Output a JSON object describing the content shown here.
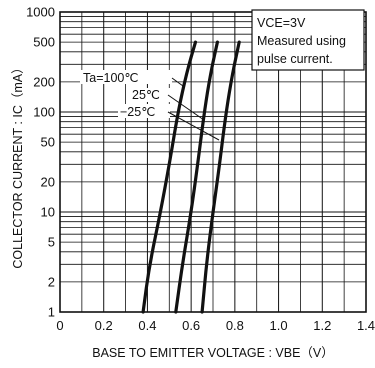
{
  "chart_data": {
    "type": "line",
    "title": "",
    "xlabel": "BASE TO EMITTER VOLTAGE : VBE（V）",
    "ylabel": "COLLECTOR CURRENT : IC（mA）",
    "xlim": [
      0,
      1.4
    ],
    "ylim": [
      1,
      1000
    ],
    "yscale": "log",
    "grid": true,
    "legend": "curve labels top-center",
    "x_ticks": [
      "0",
      "0.2",
      "0.4",
      "0.6",
      "0.8",
      "1.0",
      "1.2",
      "1.4"
    ],
    "y_ticks": [
      "1",
      "2",
      "5",
      "10",
      "20",
      "50",
      "100",
      "200",
      "500",
      "1000"
    ],
    "series": [
      {
        "name": "Ta=100℃",
        "x": [
          0.38,
          0.41,
          0.46,
          0.5,
          0.54,
          0.58,
          0.62
        ],
        "y": [
          1,
          3,
          10,
          30,
          100,
          250,
          500
        ]
      },
      {
        "name": "25℃",
        "x": [
          0.53,
          0.56,
          0.6,
          0.63,
          0.66,
          0.69,
          0.72
        ],
        "y": [
          1,
          3,
          10,
          30,
          100,
          250,
          500
        ]
      },
      {
        "name": "−25℃",
        "x": [
          0.65,
          0.67,
          0.7,
          0.73,
          0.76,
          0.79,
          0.82
        ],
        "y": [
          1,
          3,
          10,
          30,
          100,
          250,
          500
        ]
      }
    ],
    "annotations": [
      "VCE=3V",
      "Measured using",
      "pulse current."
    ]
  }
}
